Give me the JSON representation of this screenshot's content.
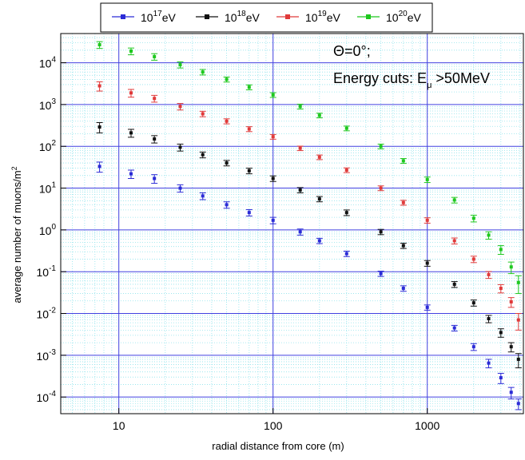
{
  "chart_data": {
    "type": "scatter",
    "title": "",
    "xlabel": "radial distance from core (m)",
    "ylabel": "average number of muons/m",
    "ylabel_superscript": "2",
    "x_scale": "log",
    "y_scale": "log",
    "xlim": [
      4.2,
      4200
    ],
    "ylim": [
      4e-05,
      50000
    ],
    "x_ticks": [
      10,
      100,
      1000
    ],
    "x_tick_labels": [
      "10",
      "100",
      "1000"
    ],
    "y_ticks": [
      0.0001,
      0.001,
      0.01,
      0.1,
      1,
      10,
      100,
      1000,
      10000
    ],
    "y_tick_labels": [
      {
        "base": "10",
        "exp": "-4"
      },
      {
        "base": "10",
        "exp": "-3"
      },
      {
        "base": "10",
        "exp": "-2"
      },
      {
        "base": "10",
        "exp": "-1"
      },
      {
        "base": "10",
        "exp": "0"
      },
      {
        "base": "10",
        "exp": "1"
      },
      {
        "base": "10",
        "exp": "2"
      },
      {
        "base": "10",
        "exp": "3"
      },
      {
        "base": "10",
        "exp": "4"
      }
    ],
    "grid": true,
    "legend_placement": "top",
    "annotations": {
      "theta": "Θ=0°;",
      "cuts_prefix": "Energy cuts: E",
      "cuts_sub": "μ",
      "cuts_suffix": " >50MeV"
    },
    "x": [
      7.5,
      12,
      17,
      25,
      35,
      50,
      70,
      100,
      150,
      200,
      300,
      500,
      700,
      1000,
      1500,
      2000,
      2500,
      3000,
      3500,
      3900
    ],
    "series": [
      {
        "name_base": "10",
        "name_exp": "17",
        "name_unit": "eV",
        "color": "#2b2bd6",
        "values": [
          33,
          22,
          17,
          10,
          6.5,
          4,
          2.6,
          1.7,
          0.9,
          0.55,
          0.27,
          0.09,
          0.04,
          0.014,
          0.0045,
          0.0016,
          0.00065,
          0.00029,
          0.00013,
          7e-05
        ],
        "errors": [
          9,
          5,
          4,
          2,
          1.2,
          0.7,
          0.45,
          0.3,
          0.15,
          0.08,
          0.04,
          0.013,
          0.006,
          0.002,
          0.0007,
          0.0003,
          0.00015,
          8e-05,
          4e-05,
          2e-05
        ]
      },
      {
        "name_base": "10",
        "name_exp": "18",
        "name_unit": "eV",
        "color": "#111111",
        "values": [
          290,
          210,
          150,
          95,
          63,
          40,
          26,
          17,
          9,
          5.5,
          2.6,
          0.9,
          0.42,
          0.16,
          0.05,
          0.018,
          0.0075,
          0.0035,
          0.0016,
          0.0008
        ],
        "errors": [
          80,
          45,
          30,
          18,
          10,
          6,
          4,
          2.6,
          1.3,
          0.8,
          0.4,
          0.13,
          0.06,
          0.025,
          0.008,
          0.003,
          0.0015,
          0.0008,
          0.0004,
          0.0003
        ]
      },
      {
        "name_base": "10",
        "name_exp": "19",
        "name_unit": "eV",
        "color": "#e03a3a",
        "values": [
          2800,
          1900,
          1400,
          900,
          600,
          400,
          260,
          170,
          90,
          55,
          27,
          10,
          4.5,
          1.7,
          0.55,
          0.2,
          0.085,
          0.04,
          0.019,
          0.007
        ],
        "errors": [
          700,
          400,
          260,
          160,
          90,
          55,
          35,
          22,
          11,
          7,
          3.5,
          1.3,
          0.6,
          0.25,
          0.09,
          0.035,
          0.016,
          0.009,
          0.005,
          0.003
        ]
      },
      {
        "name_base": "10",
        "name_exp": "20",
        "name_unit": "eV",
        "color": "#1ec81e",
        "values": [
          27000,
          19000,
          14000,
          9000,
          6000,
          4000,
          2600,
          1700,
          900,
          550,
          270,
          100,
          45,
          16,
          5.2,
          1.9,
          0.75,
          0.34,
          0.13,
          0.055
        ],
        "errors": [
          5000,
          3500,
          2500,
          1500,
          900,
          550,
          350,
          220,
          120,
          70,
          35,
          13,
          6,
          2.4,
          0.8,
          0.35,
          0.15,
          0.08,
          0.04,
          0.025
        ]
      }
    ]
  }
}
